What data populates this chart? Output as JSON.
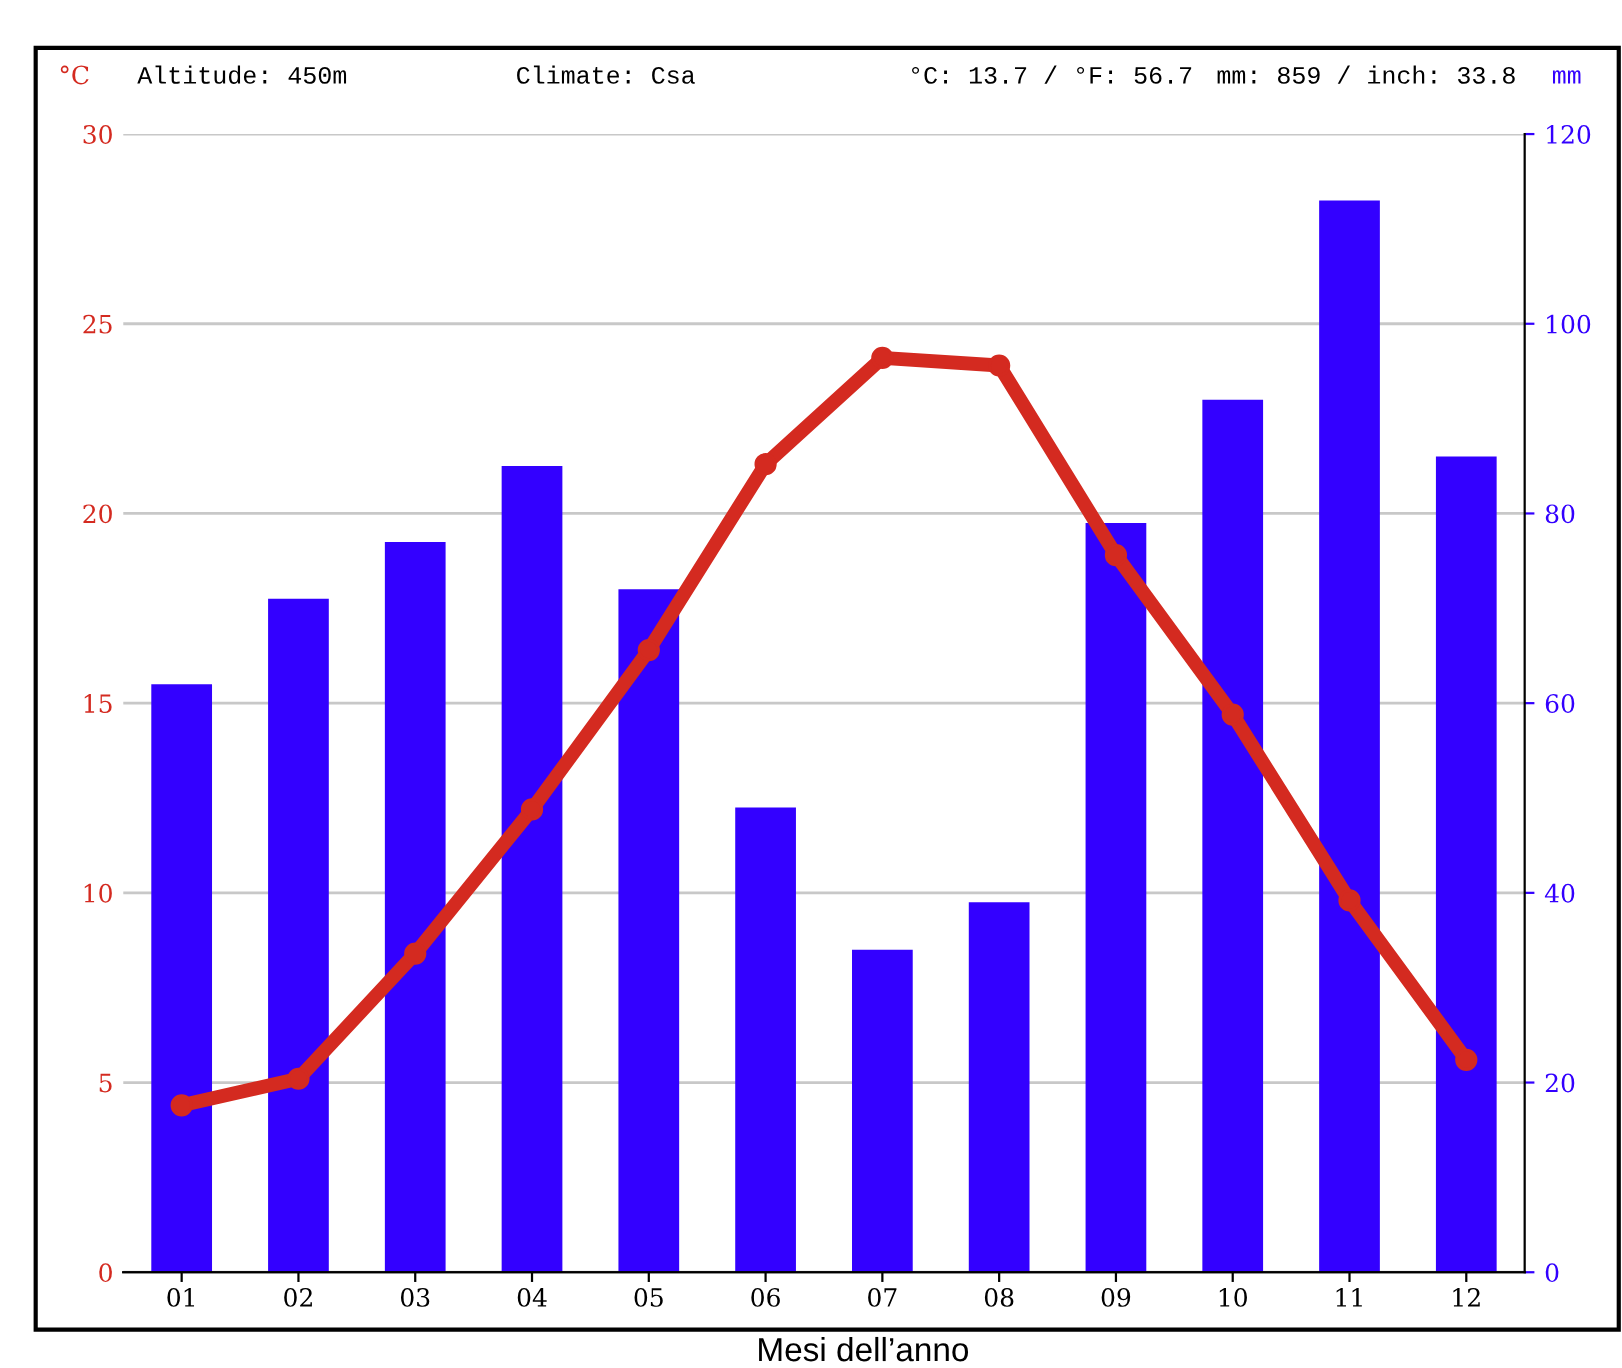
{
  "chart_data": {
    "type": "bar",
    "categories": [
      "01",
      "02",
      "03",
      "04",
      "05",
      "06",
      "07",
      "08",
      "09",
      "10",
      "11",
      "12"
    ],
    "xlabel": "Mesi dell’anno",
    "ylabel": "°C",
    "y2label": "mm",
    "annotations": [
      "Altitude: 450m",
      "Climate: Csa",
      "°C: 13.7 / °F: 56.7",
      "mm: 859 / inch: 33.8"
    ],
    "series": [
      {
        "axis": "y2",
        "color": "#3300ff",
        "values": [
          62,
          71,
          77,
          85,
          72,
          49,
          34,
          39,
          79,
          92,
          113,
          86
        ]
      },
      {
        "type": "line",
        "axis": "y",
        "color": "#d42a20",
        "marker": "circle",
        "line_style": "solid",
        "values": [
          4.4,
          5.1,
          8.4,
          12.2,
          16.4,
          21.3,
          24.1,
          23.9,
          18.9,
          14.7,
          9.8,
          5.6
        ]
      }
    ],
    "ylim": [
      0,
      30
    ],
    "yticks": [
      0,
      5,
      10,
      15,
      20,
      25,
      30
    ],
    "y2lim": [
      0,
      120
    ],
    "y2ticks": [
      0,
      20,
      40,
      60,
      80,
      100,
      120
    ],
    "grid": "y",
    "legend": false
  }
}
